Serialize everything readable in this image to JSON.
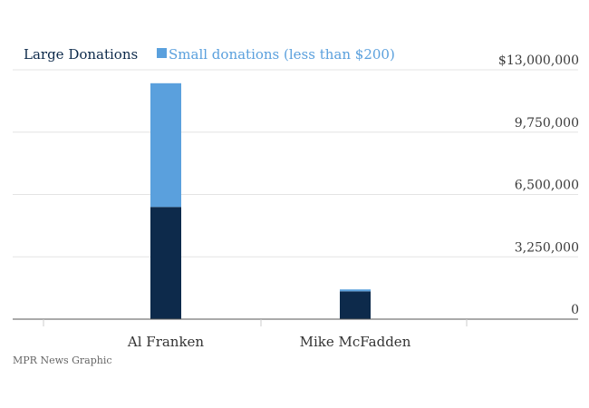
{
  "chart_data": {
    "type": "bar",
    "stacked": true,
    "categories": [
      "Al Franken",
      "Mike McFadden"
    ],
    "series": [
      {
        "name": "Large Donations",
        "values": [
          5850000,
          1450000
        ],
        "color": "#0d2a4b"
      },
      {
        "name": "Small donations (less than $200)",
        "values": [
          6450000,
          100000
        ],
        "color": "#5aa0dd"
      }
    ],
    "ylim": [
      0,
      13000000
    ],
    "yticks": [
      {
        "value": 0,
        "label": "0"
      },
      {
        "value": 3250000,
        "label": "3,250,000"
      },
      {
        "value": 6500000,
        "label": "6,500,000"
      },
      {
        "value": 9750000,
        "label": "9,750,000"
      },
      {
        "value": 13000000,
        "label": "$13,000,000"
      }
    ],
    "grid": true,
    "legend_position": "top-left",
    "title": "",
    "xlabel": "",
    "ylabel": ""
  },
  "source_note": "MPR News Graphic"
}
